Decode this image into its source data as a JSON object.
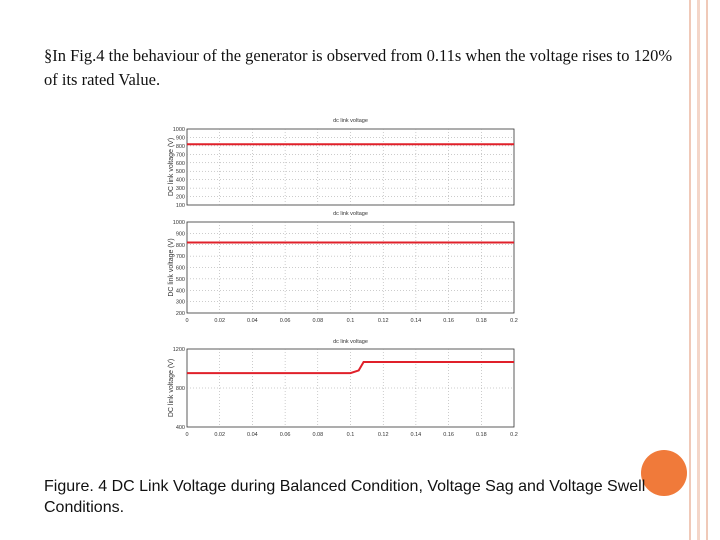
{
  "slide": {
    "bullet": "§",
    "paragraph": "In Fig.4 the behaviour of the generator is observed from 0.11s when the voltage rises to 120% of its rated Value.",
    "caption": "Figure. 4 DC Link Voltage during Balanced Condition, Voltage Sag and Voltage Swell Conditions."
  },
  "colors": {
    "accent": "#f07a3a",
    "rail": "#f0c9b8",
    "trace": "#e0202a",
    "grid": "#9a9a9a"
  },
  "chart_data": [
    {
      "type": "line",
      "title": "dc link voltage",
      "ylabel": "DC link voltage (V)",
      "xlabel": "",
      "xlim": [
        0,
        0.2
      ],
      "ylim": [
        100,
        1000
      ],
      "yticks": [
        "1000",
        "900",
        "800",
        "700",
        "600",
        "500",
        "400",
        "300",
        "200",
        "100"
      ],
      "xticks": [],
      "grid": true,
      "series": [
        {
          "x": [
            0,
            0.2
          ],
          "values": [
            820,
            820
          ]
        }
      ]
    },
    {
      "type": "line",
      "title": "dc link voltage",
      "ylabel": "DC link voltage (V)",
      "xlabel": "",
      "xlim": [
        0,
        0.2
      ],
      "ylim": [
        200,
        1000
      ],
      "yticks": [
        "1000",
        "900",
        "800",
        "700",
        "600",
        "500",
        "400",
        "300",
        "200"
      ],
      "xticks": [
        "0",
        "0.02",
        "0.04",
        "0.06",
        "0.08",
        "0.1",
        "0.12",
        "0.14",
        "0.16",
        "0.18",
        "0.2"
      ],
      "grid": true,
      "series": [
        {
          "x": [
            0,
            0.2
          ],
          "values": [
            820,
            820
          ]
        }
      ]
    },
    {
      "type": "line",
      "title": "dc link voltage",
      "ylabel": "DC link voltage (V)",
      "xlabel": "",
      "xlim": [
        0,
        0.2
      ],
      "ylim": [
        0,
        1200
      ],
      "yticks": [
        "1200",
        "800",
        "400"
      ],
      "xticks": [
        "0",
        "0.02",
        "0.04",
        "0.06",
        "0.08",
        "0.1",
        "0.12",
        "0.14",
        "0.16",
        "0.18",
        "0.2"
      ],
      "grid": true,
      "series": [
        {
          "x": [
            0,
            0.1,
            0.105,
            0.108,
            0.2
          ],
          "values": [
            830,
            830,
            870,
            1000,
            1000
          ]
        }
      ]
    }
  ]
}
